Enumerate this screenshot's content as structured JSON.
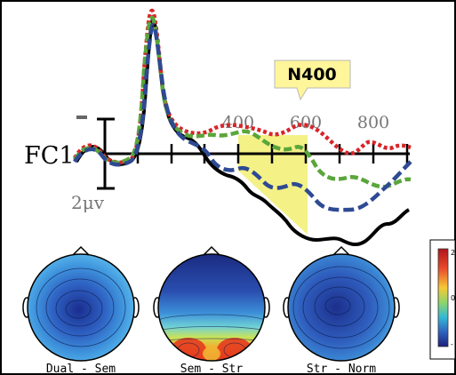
{
  "erp": {
    "channel_label": "FC1",
    "scale_label": "2μv",
    "polarity_sign": "-",
    "time_ticks": [
      "400",
      "600",
      "800"
    ],
    "callout_label": "N400",
    "window_ms": [
      430,
      660
    ],
    "callout_color": "#fff59a",
    "window_color": "#f3ef7a",
    "series_colors": {
      "black": "#000000",
      "red": "#d6262a",
      "green": "#5aa63a",
      "blue": "#2e4a93"
    }
  },
  "topomaps": [
    {
      "label": "Dual - Sem"
    },
    {
      "label": "Sem - Str"
    },
    {
      "label": "Str - Norm"
    }
  ],
  "colorbar": {
    "top_label": "2",
    "mid_label": "0",
    "bottom_label": "-"
  }
}
